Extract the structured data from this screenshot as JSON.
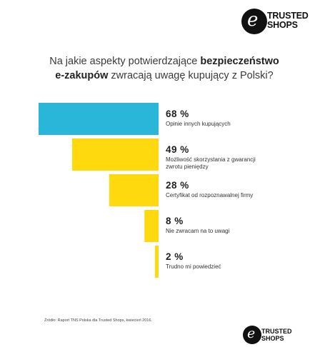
{
  "brand": {
    "line1": "TRUSTED",
    "line2": "SHOPS",
    "mark": "e"
  },
  "question": {
    "part1": "Na jakie aspekty potwierdzające ",
    "bold1": "bezpieczeństwo",
    "bold2": "e-zakupów",
    "part2": " zwracają uwagę kupujący z Polski?"
  },
  "chart_data": {
    "type": "bar",
    "orientation": "horizontal",
    "categories": [
      "Opinie innych kupujących",
      "Możliwość skorzystania z gwarancji zwrotu pieniędzy",
      "Certyfikat od rozpoznawalnej firmy",
      "Nie zwracam na to uwagi",
      "Trudno mi powiedzieć"
    ],
    "category_lines": [
      [
        "Opinie innych kupujących"
      ],
      [
        "Możliwość skorzystania z gwarancji",
        "zwrotu pieniędzy"
      ],
      [
        "Certyfikat od rozpoznawalnej firmy"
      ],
      [
        "Nie zwracam na to uwagi"
      ],
      [
        "Trudno mi powiedzieć"
      ]
    ],
    "values": [
      68,
      49,
      28,
      8,
      2
    ],
    "value_labels": [
      "68 %",
      "49 %",
      "28 %",
      "8 %",
      "2 %"
    ],
    "colors": [
      "#29b6d8",
      "#fdd90e",
      "#fdd90e",
      "#fdd90e",
      "#fdd90e"
    ],
    "xlim": [
      0,
      68
    ]
  },
  "source": "Źródło: Raport TNS Polska dla Trusted Shops, kwiecień 2016."
}
